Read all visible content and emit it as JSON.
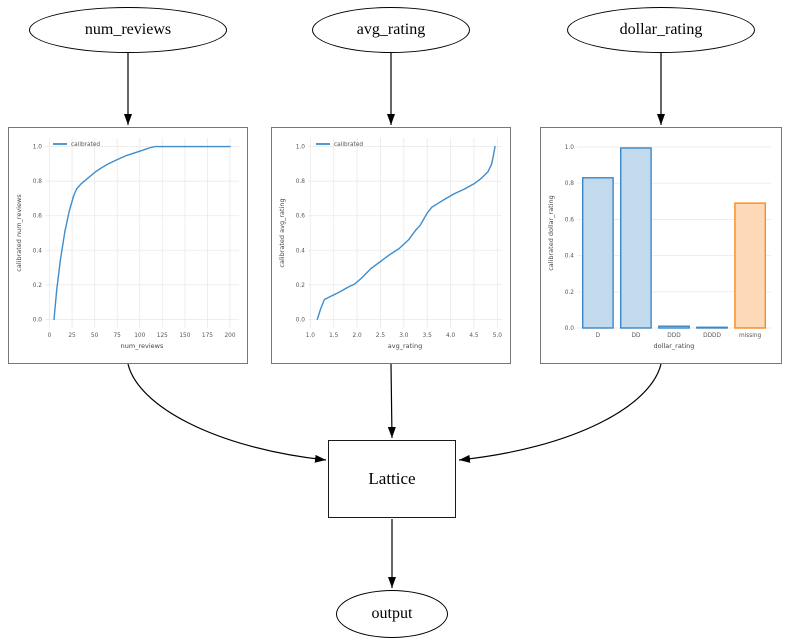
{
  "nodes": {
    "num_reviews": "num_reviews",
    "avg_rating": "avg_rating",
    "dollar_rating": "dollar_rating",
    "lattice": "Lattice",
    "output": "output"
  },
  "colors": {
    "line_blue": "#3f8dcc",
    "bar_blue_fill": "#c3d9ec",
    "bar_blue_edge": "#3b87c8",
    "bar_orange_fill": "#fdd9b8",
    "bar_orange_edge": "#f68c1f",
    "grid": "#e9e9e9",
    "edge_black": "#000000",
    "plot_border": "#777777"
  },
  "chart_data": [
    {
      "type": "line",
      "title": "",
      "xlabel": "num_reviews",
      "ylabel": "calibrated num_reviews",
      "grid": true,
      "legend_position": "upper left",
      "xlim": [
        -5,
        210
      ],
      "ylim": [
        -0.05,
        1.05
      ],
      "xticks": [
        "0",
        "25",
        "50",
        "75",
        "100",
        "125",
        "150",
        "175",
        "200"
      ],
      "yticks": [
        "0.0",
        "0.2",
        "0.4",
        "0.6",
        "0.8",
        "1.0"
      ],
      "line_color": "#3f8dcc",
      "series": [
        {
          "name": "calibrated",
          "x": [
            5,
            8,
            12,
            17,
            22,
            27,
            30,
            35,
            42,
            50,
            57,
            65,
            75,
            85,
            95,
            105,
            112,
            117,
            200
          ],
          "y": [
            0.0,
            0.17,
            0.34,
            0.51,
            0.63,
            0.72,
            0.755,
            0.785,
            0.815,
            0.85,
            0.875,
            0.9,
            0.925,
            0.948,
            0.965,
            0.982,
            0.995,
            1.0,
            1.0
          ]
        }
      ]
    },
    {
      "type": "line",
      "title": "",
      "xlabel": "avg_rating",
      "ylabel": "calibrated avg_rating",
      "grid": true,
      "legend_position": "upper left",
      "xlim": [
        0.95,
        5.1
      ],
      "ylim": [
        -0.05,
        1.05
      ],
      "xticks": [
        "1.0",
        "1.5",
        "2.0",
        "2.5",
        "3.0",
        "3.5",
        "4.0",
        "4.5",
        "5.0"
      ],
      "yticks": [
        "0.0",
        "0.2",
        "0.4",
        "0.6",
        "0.8",
        "1.0"
      ],
      "line_color": "#3f8dcc",
      "series": [
        {
          "name": "calibrated",
          "x": [
            1.15,
            1.22,
            1.3,
            1.45,
            1.6,
            1.8,
            1.95,
            2.1,
            2.3,
            2.5,
            2.7,
            2.9,
            3.1,
            3.25,
            3.35,
            3.5,
            3.6,
            3.75,
            3.9,
            4.1,
            4.3,
            4.5,
            4.65,
            4.8,
            4.88,
            4.92,
            4.95
          ],
          "y": [
            0.0,
            0.06,
            0.115,
            0.135,
            0.155,
            0.185,
            0.205,
            0.24,
            0.295,
            0.335,
            0.375,
            0.41,
            0.46,
            0.515,
            0.545,
            0.615,
            0.65,
            0.675,
            0.7,
            0.73,
            0.755,
            0.785,
            0.815,
            0.855,
            0.9,
            0.955,
            1.0
          ]
        }
      ]
    },
    {
      "type": "bar",
      "title": "",
      "xlabel": "dollar_rating",
      "ylabel": "calibrated dollar_rating",
      "grid": true,
      "categories": [
        "D",
        "DD",
        "DDD",
        "DDDD",
        "missing"
      ],
      "values": [
        0.83,
        0.995,
        0.01,
        0.004,
        0.69
      ],
      "ylim": [
        0,
        1.05
      ],
      "yticks": [
        "0.0",
        "0.2",
        "0.4",
        "0.6",
        "0.8",
        "1.0"
      ],
      "bar_fill": [
        "#c3d9ec",
        "#c3d9ec",
        "#c3d9ec",
        "#c3d9ec",
        "#fdd9b8"
      ],
      "bar_edge": [
        "#3b87c8",
        "#3b87c8",
        "#3b87c8",
        "#3b87c8",
        "#f68c1f"
      ]
    }
  ]
}
